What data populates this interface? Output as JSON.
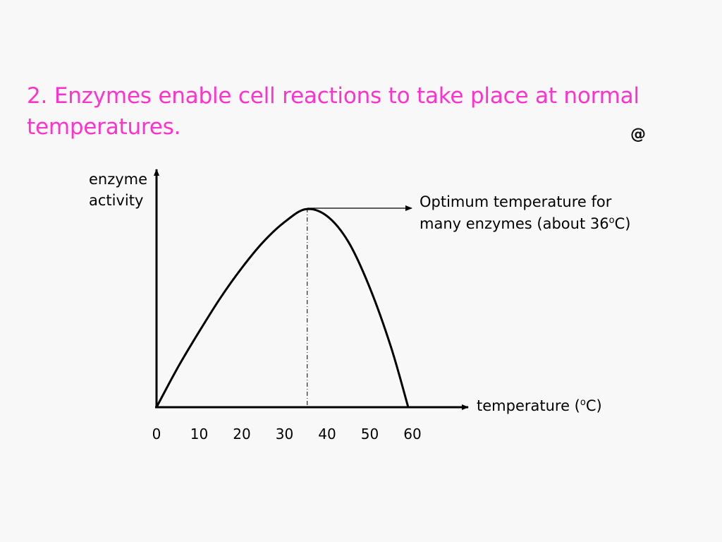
{
  "slide": {
    "title_line1": "2. Enzymes enable cell reactions to take place at normal",
    "title_line2": "temperatures.",
    "title_color": "#ff33cc",
    "corner_mark": "@"
  },
  "chart_data": {
    "type": "line",
    "ylabel_line1": "enzyme",
    "ylabel_line2": "activity",
    "xlabel": "temperature (",
    "xlabel_sup": "o",
    "xlabel_end": "C)",
    "x_ticks": [
      0,
      10,
      20,
      30,
      40,
      50,
      60
    ],
    "xlim": [
      0,
      73
    ],
    "ylim": [
      0,
      100
    ],
    "grid": false,
    "y_tick_labels": false,
    "series": [
      {
        "x": [
          0,
          5,
          10,
          15,
          20,
          25,
          30,
          35,
          40,
          45,
          50,
          55,
          59
        ],
        "y": [
          0,
          20,
          38,
          55,
          70,
          83,
          93,
          99.5,
          96,
          83,
          60,
          30,
          0
        ]
      }
    ],
    "optimum": {
      "x": 35,
      "y": 100,
      "annotation_line1": "Optimum temperature for",
      "annotation_line2a": "many enzymes (about 36",
      "annotation_line2_sup": "o",
      "annotation_line2b": "C)"
    }
  }
}
